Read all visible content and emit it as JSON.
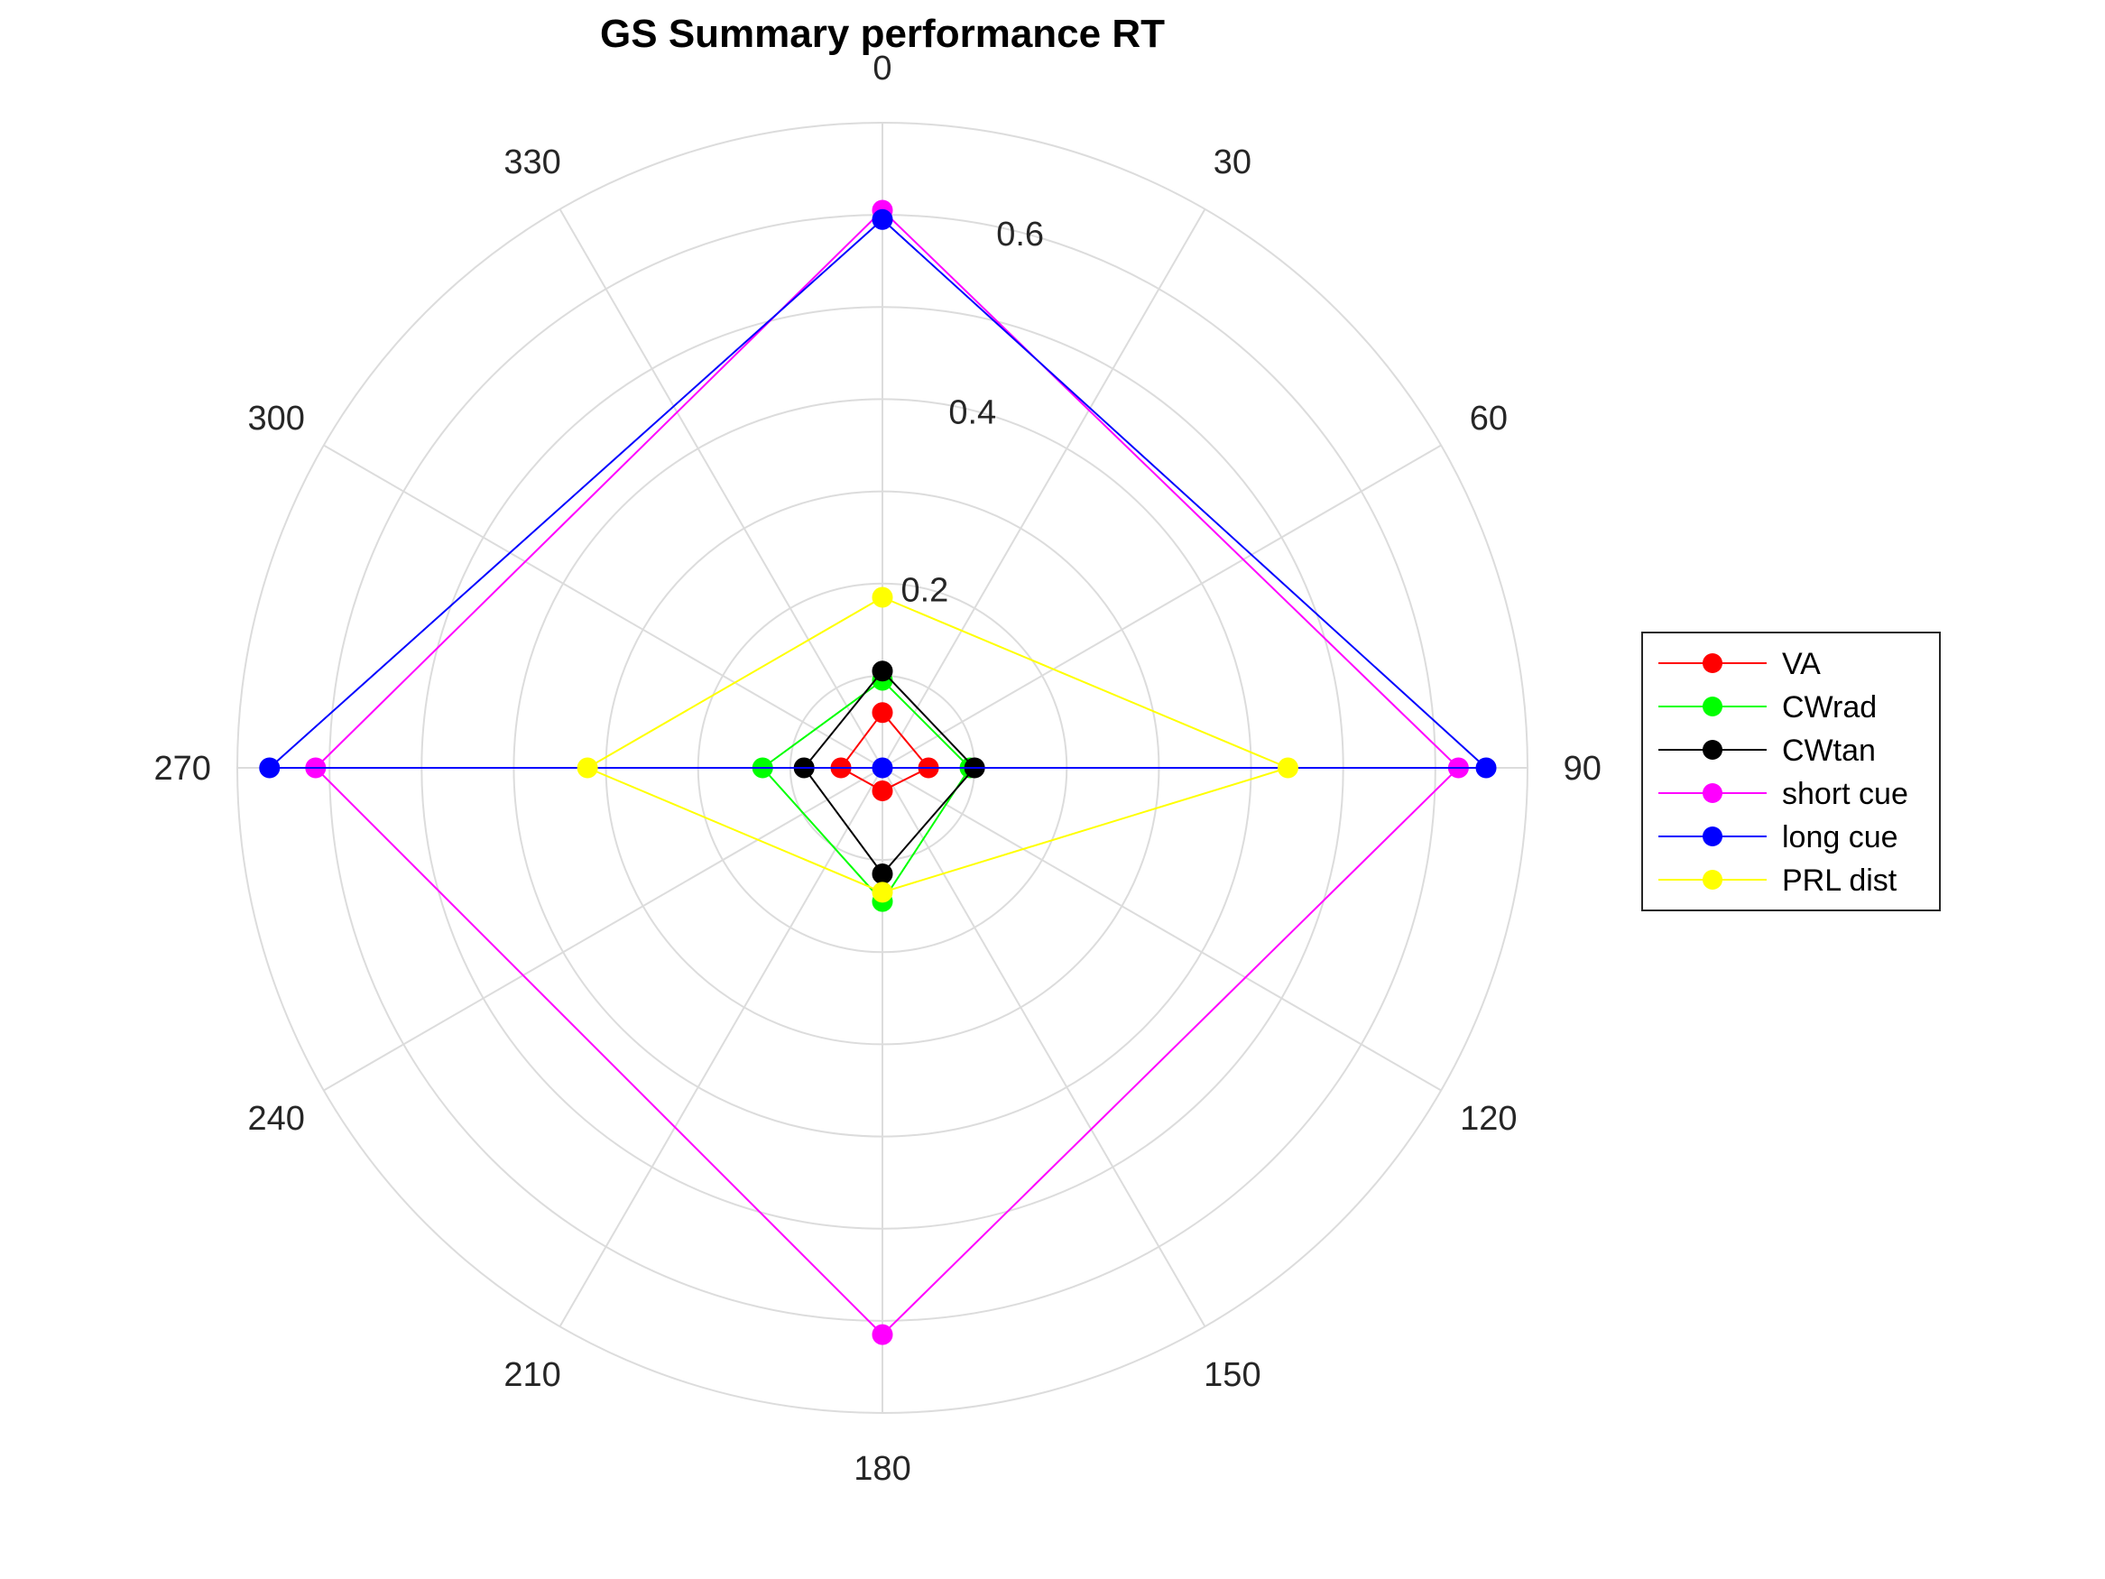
{
  "chart_data": {
    "type": "line",
    "subtype": "polar",
    "title": "GS Summary performance RT",
    "theta_direction": "clockwise",
    "theta_zero": "top",
    "theta_ticks": [
      0,
      30,
      60,
      90,
      120,
      150,
      180,
      210,
      240,
      270,
      300,
      330
    ],
    "theta_tick_labels": [
      "0",
      "30",
      "60",
      "90",
      "120",
      "150",
      "180",
      "210",
      "240",
      "270",
      "300",
      "330"
    ],
    "r_ticks": [
      0.2,
      0.4,
      0.6
    ],
    "r_tick_labels": [
      "0.2",
      "0.4",
      "0.6"
    ],
    "rlim": [
      0,
      0.7
    ],
    "grid": true,
    "legend_position": "right",
    "theta": [
      0,
      90,
      180,
      270
    ],
    "series": [
      {
        "name": "VA",
        "color": "#ff0000",
        "values": [
          0.06,
          0.05,
          0.025,
          0.045
        ]
      },
      {
        "name": "CWrad",
        "color": "#00ff00",
        "values": [
          0.095,
          0.095,
          0.145,
          0.13
        ]
      },
      {
        "name": "CWtan",
        "color": "#000000",
        "values": [
          0.105,
          0.1,
          0.115,
          0.085
        ]
      },
      {
        "name": "short cue",
        "color": "#ff00ff",
        "values": [
          0.605,
          0.625,
          0.615,
          0.615
        ]
      },
      {
        "name": "long cue",
        "color": "#0000ff",
        "values": [
          0.595,
          0.655,
          0.0,
          0.665
        ]
      },
      {
        "name": "PRL dist",
        "color": "#ffff00",
        "values": [
          0.185,
          0.44,
          0.135,
          0.32
        ]
      }
    ]
  }
}
